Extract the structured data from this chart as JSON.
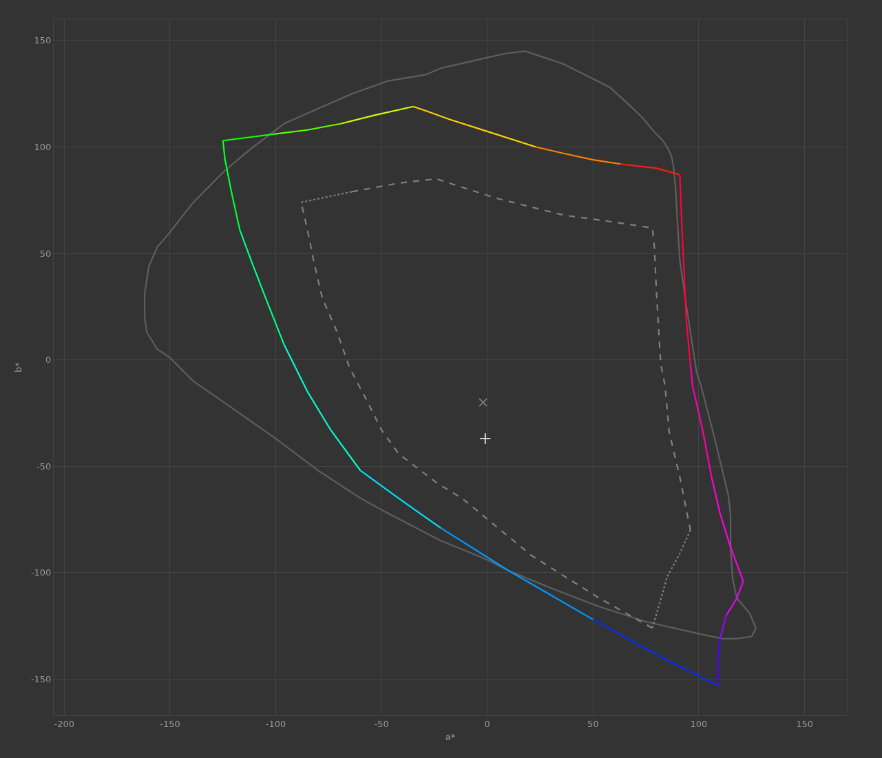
{
  "chart_data": {
    "type": "line",
    "xlabel": "a*",
    "ylabel": "b*",
    "xlim": [
      -205,
      170
    ],
    "ylim": [
      -167,
      160
    ],
    "xticks": [
      -200,
      -150,
      -100,
      -50,
      0,
      50,
      100,
      150
    ],
    "yticks": [
      -150,
      -100,
      -50,
      0,
      50,
      100,
      150
    ],
    "grid": true,
    "marker": "none",
    "series": [
      {
        "color": "#5e5e5e",
        "line_style": "solid",
        "x": [
          -162,
          -162,
          -160,
          -156,
          -150,
          -139,
          -124,
          -112,
          -96,
          -80,
          -64,
          -47,
          -29,
          -22,
          0,
          9,
          18,
          27,
          36,
          50,
          58,
          69,
          74,
          79,
          83,
          85,
          87,
          88,
          89,
          90,
          91,
          94,
          99,
          101,
          108,
          114,
          115,
          115,
          116,
          118,
          124,
          127
        ],
        "values": [
          20,
          31,
          44,
          53,
          60,
          74,
          89,
          99,
          111,
          118,
          125,
          131,
          134,
          137,
          142,
          144,
          145,
          142,
          139,
          132,
          128,
          118,
          113,
          107,
          103,
          100,
          96,
          91,
          81,
          63,
          47,
          26,
          -6,
          -12,
          -39,
          -64,
          -73,
          -88,
          -103,
          -112,
          -119,
          -126
        ]
      },
      {
        "color": "#5e5e5e",
        "line_style": "solid",
        "x": [
          127,
          125,
          118,
          111,
          97,
          75,
          53,
          32,
          10,
          0,
          -12,
          -22,
          -49,
          -60,
          -80,
          -100,
          -123,
          -139,
          -150,
          -156,
          -161,
          -162
        ],
        "values": [
          -126,
          -130,
          -131,
          -131,
          -128,
          -123,
          -116,
          -108,
          -99,
          -94,
          -89,
          -85,
          -71,
          -65,
          -52,
          -37,
          -21,
          -10,
          1,
          5,
          13,
          20
        ]
      },
      {
        "color": "#808080",
        "line_style": "dashed",
        "x": [
          78,
          53,
          21,
          -12,
          -22,
          -25,
          -42,
          -50,
          -57,
          -65,
          -71,
          -78,
          -82,
          -85,
          -88
        ],
        "values": [
          -126,
          -112,
          -92,
          -65,
          -59,
          -57,
          -44,
          -33,
          -19,
          -4,
          13,
          29,
          46,
          61,
          74
        ]
      },
      {
        "color": "#808080",
        "line_style": "dotted",
        "x": [
          -88,
          -64
        ],
        "values": [
          74,
          79
        ]
      },
      {
        "color": "#808080",
        "line_style": "dashed",
        "x": [
          -64,
          -42,
          -24,
          4,
          36,
          58,
          78,
          79,
          80,
          82,
          84,
          86,
          91,
          96
        ],
        "values": [
          79,
          83,
          85,
          76,
          68,
          65,
          62,
          53,
          31,
          -2,
          -12,
          -34,
          -55,
          -80
        ]
      },
      {
        "color": "#808080",
        "line_style": "dotted",
        "x": [
          96,
          91,
          85,
          81,
          78
        ],
        "values": [
          -80,
          -91,
          -102,
          -116,
          -126
        ]
      },
      {
        "color": "#ff2000",
        "line_style": "solid",
        "x": [
          91,
          80,
          63
        ],
        "values": [
          87,
          90,
          92
        ]
      },
      {
        "color": "#ff8000",
        "line_style": "solid",
        "x": [
          63,
          50,
          36,
          23
        ],
        "values": [
          92,
          94,
          97,
          100
        ]
      },
      {
        "color": "#ffd000",
        "line_style": "solid",
        "x": [
          23,
          1,
          -18,
          -29,
          -35
        ],
        "values": [
          100,
          107,
          113,
          117,
          119
        ]
      },
      {
        "color": "#c8ff00",
        "line_style": "solid",
        "x": [
          -35,
          -53,
          -69
        ],
        "values": [
          119,
          115,
          111
        ]
      },
      {
        "color": "#60ff00",
        "line_style": "solid",
        "x": [
          -69,
          -85,
          -101
        ],
        "values": [
          111,
          108,
          106
        ]
      },
      {
        "color": "#10ff00",
        "line_style": "solid",
        "x": [
          -101,
          -125
        ],
        "values": [
          106,
          103
        ]
      },
      {
        "color": "#00ff30",
        "line_style": "solid",
        "x": [
          -125,
          -124,
          -121,
          -117
        ],
        "values": [
          103,
          94,
          79,
          61
        ]
      },
      {
        "color": "#00ff80",
        "line_style": "solid",
        "x": [
          -117,
          -111,
          -104,
          -96
        ],
        "values": [
          61,
          45,
          27,
          7
        ]
      },
      {
        "color": "#00ffd0",
        "line_style": "solid",
        "x": [
          -96,
          -85,
          -74,
          -60
        ],
        "values": [
          7,
          -15,
          -33,
          -52
        ]
      },
      {
        "color": "#00e0ff",
        "line_style": "solid",
        "x": [
          -60,
          -42,
          -22
        ],
        "values": [
          -52,
          -65,
          -79
        ]
      },
      {
        "color": "#0098ff",
        "line_style": "solid",
        "x": [
          -22,
          10,
          50
        ],
        "values": [
          -79,
          -99,
          -122
        ]
      },
      {
        "color": "#0030ff",
        "line_style": "solid",
        "x": [
          50,
          81,
          109
        ],
        "values": [
          -122,
          -139,
          -153
        ]
      },
      {
        "color": "#5000ff",
        "line_style": "solid",
        "x": [
          109,
          109,
          110
        ],
        "values": [
          -153,
          -142,
          -131
        ]
      },
      {
        "color": "#a000ff",
        "line_style": "solid",
        "x": [
          110,
          113
        ],
        "values": [
          -131,
          -120
        ]
      },
      {
        "color": "#e000ff",
        "line_style": "solid",
        "x": [
          113,
          118,
          121
        ],
        "values": [
          -120,
          -112,
          -104
        ]
      },
      {
        "color": "#ff00e8",
        "line_style": "solid",
        "x": [
          121,
          115,
          110,
          106
        ],
        "values": [
          -104,
          -88,
          -72,
          -55
        ]
      },
      {
        "color": "#ff00a8",
        "line_style": "solid",
        "x": [
          106,
          102,
          97,
          96
        ],
        "values": [
          -55,
          -34,
          -12,
          -2
        ]
      },
      {
        "color": "#ff0040",
        "line_style": "solid",
        "x": [
          96,
          94,
          93,
          92,
          91
        ],
        "values": [
          -2,
          20,
          42,
          63,
          87
        ]
      },
      {
        "type": "scatter",
        "marker": "x",
        "color": "#8c8c8c",
        "x": [
          -2
        ],
        "values": [
          -20
        ]
      },
      {
        "type": "scatter",
        "marker": "cross",
        "color": "#ffffff",
        "x": [
          -1
        ],
        "values": [
          -37
        ]
      }
    ]
  }
}
